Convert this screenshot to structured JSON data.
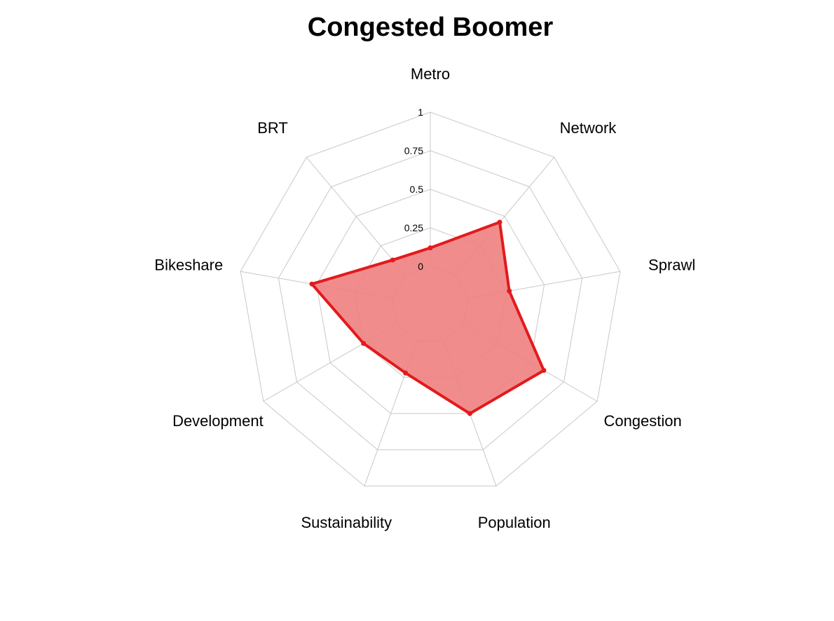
{
  "chart_data": {
    "type": "radar",
    "title": "Congested Boomer",
    "axes": [
      "Metro",
      "Network",
      "Sprawl",
      "Congestion",
      "Population",
      "Sustainability",
      "Development",
      "Bikeshare",
      "BRT"
    ],
    "ticks": [
      "0",
      "0.25",
      "0.5",
      "0.75",
      "1"
    ],
    "range": [
      0,
      1
    ],
    "series": [
      {
        "values": [
          0.12,
          0.45,
          0.27,
          0.6,
          0.5,
          0.22,
          0.25,
          0.53,
          0.13
        ],
        "color": "#e31a1c",
        "fill_color": "#f08080"
      }
    ],
    "grid": true,
    "grid_color": "#c8c8c8"
  }
}
